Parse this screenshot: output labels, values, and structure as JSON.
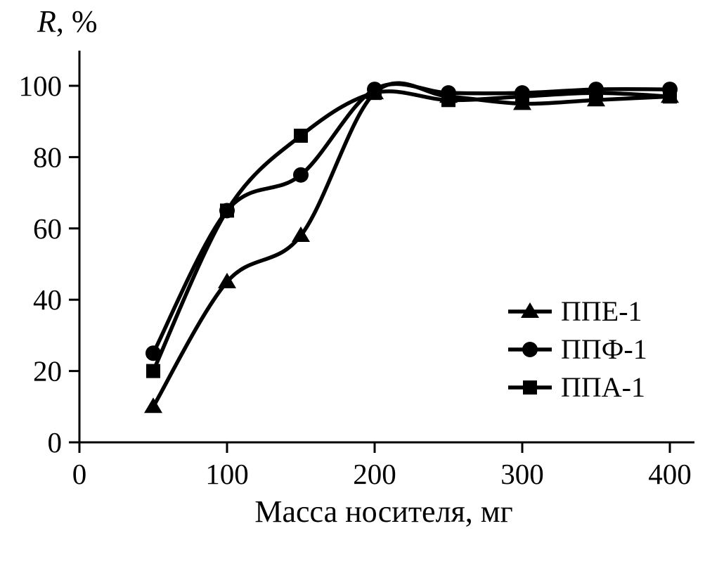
{
  "chart": {
    "ylabel_italic": "R",
    "ylabel_rest": ", %",
    "xlabel": "Масса носителя, мг"
  },
  "chart_data": {
    "type": "line",
    "title": "",
    "xlabel": "Масса носителя, мг",
    "ylabel": "R, %",
    "x": [
      50,
      100,
      150,
      200,
      250,
      300,
      350,
      400
    ],
    "series": [
      {
        "name": "ППЕ-1",
        "marker": "triangle",
        "values": [
          10,
          45,
          58,
          98,
          97,
          95,
          96,
          97
        ]
      },
      {
        "name": "ППФ-1",
        "marker": "circle",
        "values": [
          25,
          65,
          75,
          99,
          98,
          98,
          99,
          99
        ]
      },
      {
        "name": "ППА-1",
        "marker": "square",
        "values": [
          20,
          65,
          86,
          98,
          96,
          97,
          98,
          97
        ]
      }
    ],
    "xticks": [
      0,
      100,
      200,
      300,
      400
    ],
    "yticks": [
      0,
      20,
      40,
      60,
      80,
      100
    ],
    "xlim": [
      0,
      417
    ],
    "ylim": [
      0,
      110
    ],
    "grid": false,
    "legend_position": "right-middle",
    "line_color": "#000000",
    "background": "#ffffff"
  }
}
